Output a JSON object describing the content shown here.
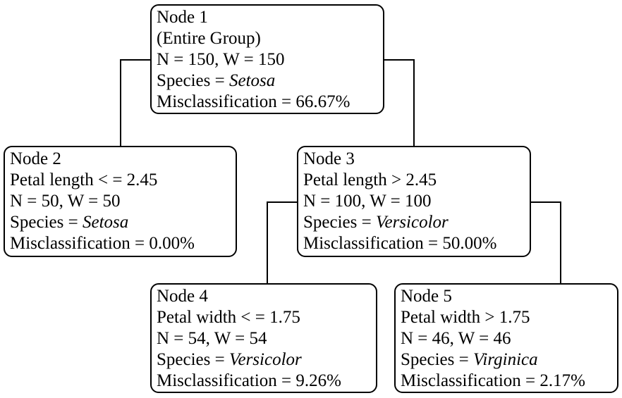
{
  "diagram": {
    "type": "decision-tree",
    "nodes": [
      {
        "id": "node-1",
        "title": "Node 1",
        "subtitle": "(Entire Group)",
        "counts": "N = 150, W = 150",
        "species_prefix": "Species = ",
        "species": "Setosa",
        "misclassification": "Misclassification = 66.67%"
      },
      {
        "id": "node-2",
        "title": "Node 2",
        "subtitle": "Petal length < = 2.45",
        "counts": "N = 50, W = 50",
        "species_prefix": "Species = ",
        "species": "Setosa",
        "misclassification": "Misclassification = 0.00%"
      },
      {
        "id": "node-3",
        "title": "Node 3",
        "subtitle": "Petal length > 2.45",
        "counts": "N = 100, W = 100",
        "species_prefix": "Species = ",
        "species": "Versicolor",
        "misclassification": "Misclassification = 50.00%"
      },
      {
        "id": "node-4",
        "title": "Node 4",
        "subtitle": "Petal width < = 1.75",
        "counts": "N = 54, W = 54",
        "species_prefix": "Species = ",
        "species": "Versicolor",
        "misclassification": "Misclassification = 9.26%"
      },
      {
        "id": "node-5",
        "title": "Node 5",
        "subtitle": "Petal width > 1.75",
        "counts": "N = 46, W = 46",
        "species_prefix": "Species = ",
        "species": "Virginica",
        "misclassification": "Misclassification = 2.17%"
      }
    ],
    "edges": [
      {
        "from": "node-1",
        "to": "node-2"
      },
      {
        "from": "node-1",
        "to": "node-3"
      },
      {
        "from": "node-3",
        "to": "node-4"
      },
      {
        "from": "node-3",
        "to": "node-5"
      }
    ]
  }
}
